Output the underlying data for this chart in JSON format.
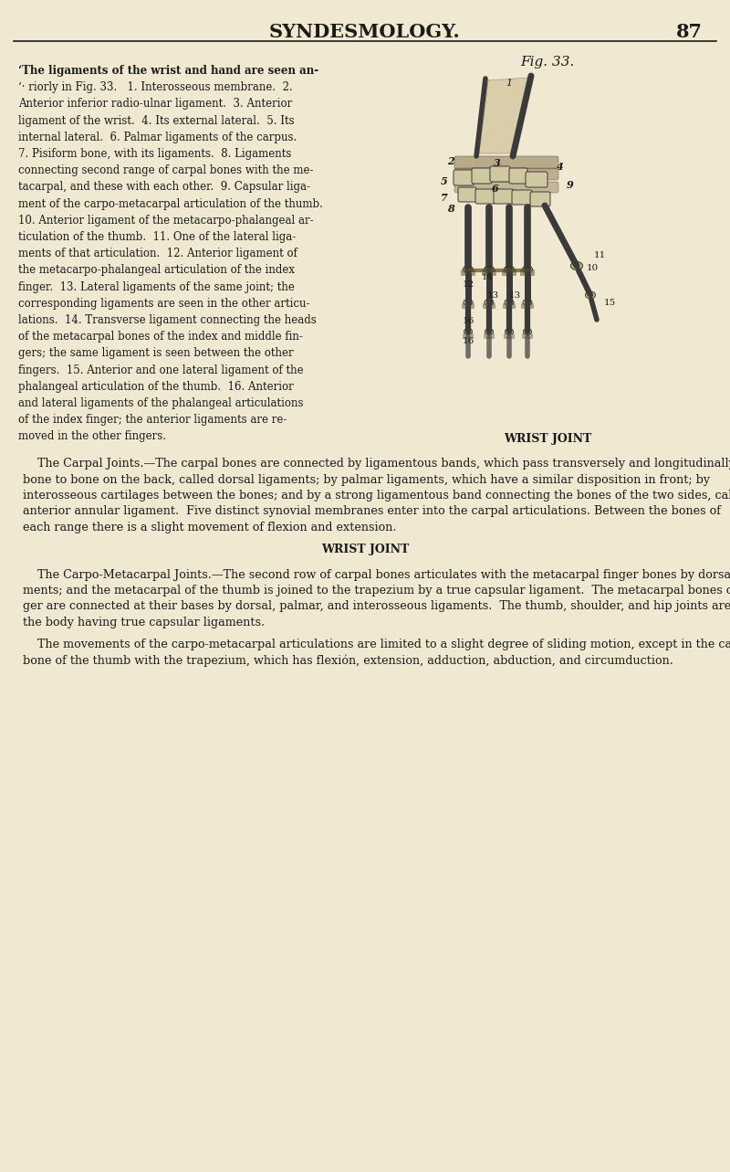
{
  "page_bg": "#f0e8d0",
  "header_text": "SYNDESMOLOGY.",
  "page_num": "87",
  "header_font_size": 16,
  "fig_label": "Fig. 33.",
  "wrist_joint_label": "WRIST JOINT",
  "left_col_text": [
    "‘The ligaments of the wrist and hand are seen an-",
    "‘· riorly in Fig. 33.   1. Interosseous membrane.  2.",
    "Anterior inferior radio-ulnar ligament.  3. Anterior",
    "ligament of the wrist.  4. Its external lateral.  5. Its",
    "internal lateral.  6. Palmar ligaments of the carpus.",
    "7. Pisiform bone, with its ligaments.  8. Ligaments",
    "connecting second range of carpal bones with the me-",
    "tacarpal, and these with each other.  9. Capsular liga-",
    "ment of the carpo-metacarpal articulation of the thumb.",
    "10. Anterior ligament of the metacarpo-phalangeal ar-",
    "ticulation of the thumb.  11. One of the lateral liga-",
    "ments of that articulation.  12. Anterior ligament of",
    "the metacarpo-phalangeal articulation of the index",
    "finger.  13. Lateral ligaments of the same joint; the",
    "corresponding ligaments are seen in the other articu-",
    "lations.  14. Transverse ligament connecting the heads",
    "of the metacarpal bones of the index and middle fin-",
    "gers; the same ligament is seen between the other",
    "fingers.  15. Anterior and one lateral ligament of the",
    "phalangeal articulation of the thumb.  16. Anterior",
    "and lateral ligaments of the phalangeal articulations",
    "of the index finger; the anterior ligaments are re-",
    "moved in the other fingers."
  ],
  "body_para1_lines": [
    "    The Carpal Joints.—The carpal bones are connected by ligamentous bands, which pass transversely and longitudinally from",
    "bone to bone on the back, called dorsal ligaments; by palmar ligaments, which have a similar disposition in front; by",
    "interosseous cartilages between the bones; and by a strong ligamentous band connecting the bones of the two sides, called",
    "anterior annular ligament.  Five distinct synovial membranes enter into the carpal articulations. Between the bones of",
    "each range there is a slight movement of flexion and extension."
  ],
  "body_para2_lines": [
    "    The Carpo-Metacarpal Joints.—The second row of carpal bones articulates with the metacarpal finger bones by dorsal and palmar liga-",
    "ments; and the metacarpal of the thumb is joined to the trapezium by a true capsular ligament.  The metacarpal bones of the four fin-",
    "ger are connected at their bases by dorsal, palmar, and interosseous ligaments.  The thumb, shoulder, and hip joints are the only ones in",
    "the body having true capsular ligaments."
  ],
  "body_para3_lines": [
    "    The movements of the carpo-metacarpal articulations are limited to a slight degree of sliding motion, except in the case of the metacarpa.",
    "bone of the thumb with the trapezium, which has flexión, extension, adduction, abduction, and circumduction."
  ],
  "bone_color": "#3a3a3a",
  "carpal_fill": "#d0c8a0",
  "lig_fill": "#8a7a50",
  "mc_fill": "#c8b880",
  "joint_band_fill": "#6a5a30",
  "transverse_lig_color": "#5a4a2a"
}
